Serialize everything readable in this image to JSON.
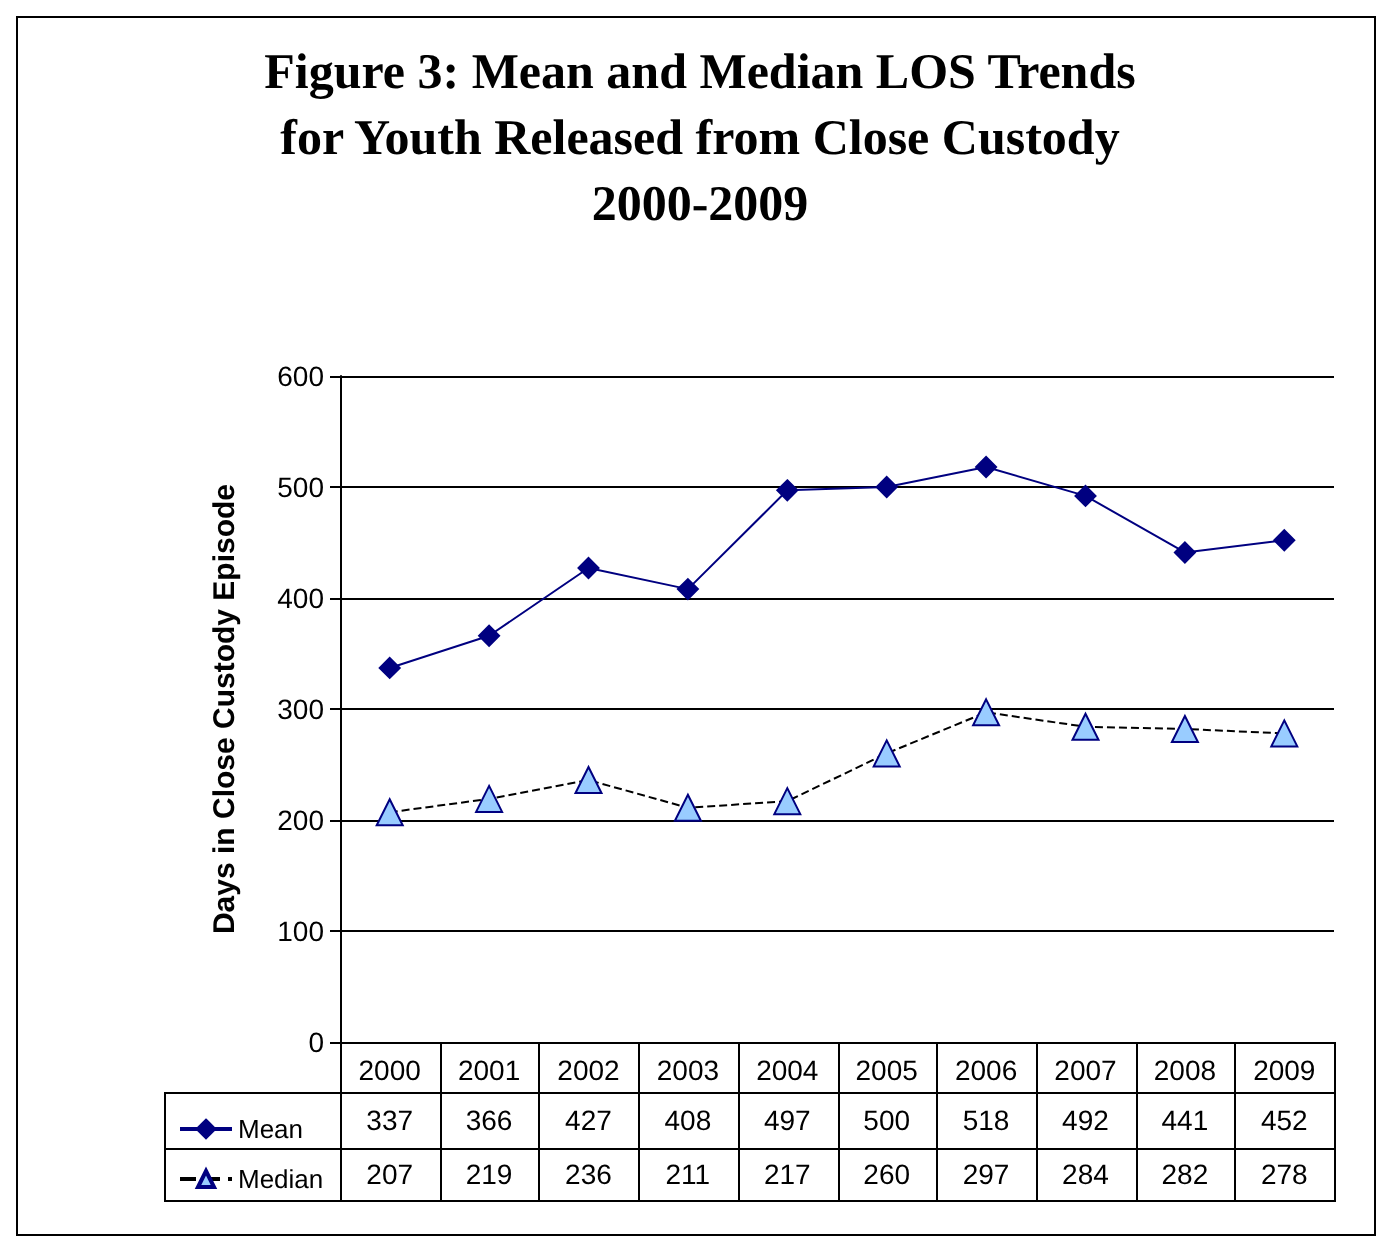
{
  "chart_data": {
    "type": "line",
    "title": "Figure 3: Mean and Median LOS Trends for Youth Released from Close Custody 2000-2009",
    "ylabel": "Days in Close Custody Episode",
    "categories": [
      "2000",
      "2001",
      "2002",
      "2003",
      "2004",
      "2005",
      "2006",
      "2007",
      "2008",
      "2009"
    ],
    "series": [
      {
        "name": "Mean",
        "color": "#000080",
        "marker": "diamond",
        "line_style": "solid",
        "values": [
          337,
          366,
          427,
          408,
          497,
          500,
          518,
          492,
          441,
          452
        ]
      },
      {
        "name": "Median",
        "color": "#99ccff",
        "marker": "triangle",
        "line_style": "dashed",
        "values": [
          207,
          219,
          236,
          211,
          217,
          260,
          297,
          284,
          282,
          278
        ]
      }
    ],
    "ylim": [
      0,
      600
    ],
    "yticks": [
      0,
      100,
      200,
      300,
      400,
      500,
      600
    ],
    "grid": "y",
    "legend": "bottom",
    "data_labels": true
  }
}
